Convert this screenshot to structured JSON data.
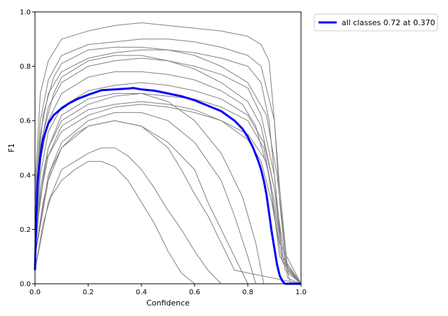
{
  "chart_data": {
    "type": "line",
    "title": "",
    "xlabel": "Confidence",
    "ylabel": "F1",
    "xlim": [
      0.0,
      1.0
    ],
    "ylim": [
      0.0,
      1.0
    ],
    "x_ticks": [
      "0.0",
      "0.2",
      "0.4",
      "0.6",
      "0.8",
      "1.0"
    ],
    "y_ticks": [
      "0.0",
      "0.2",
      "0.4",
      "0.6",
      "0.8",
      "1.0"
    ],
    "grid": false,
    "legend_position": "outside-top-right",
    "colors": {
      "class_curves": "#808080",
      "all_classes": "#0000ff"
    },
    "series": [
      {
        "name": "all classes 0.72 at 0.370",
        "legend_label": "all classes 0.72 at 0.370",
        "highlight": true,
        "x": [
          0.0,
          0.005,
          0.01,
          0.02,
          0.03,
          0.05,
          0.07,
          0.1,
          0.13,
          0.16,
          0.2,
          0.25,
          0.3,
          0.35,
          0.37,
          0.4,
          0.45,
          0.5,
          0.55,
          0.6,
          0.65,
          0.7,
          0.75,
          0.78,
          0.8,
          0.82,
          0.84,
          0.85,
          0.86,
          0.87,
          0.88,
          0.89,
          0.9,
          0.91,
          0.92,
          0.93,
          0.94,
          0.95,
          0.97,
          1.0
        ],
        "values": [
          0.05,
          0.25,
          0.38,
          0.47,
          0.53,
          0.59,
          0.62,
          0.645,
          0.665,
          0.68,
          0.695,
          0.712,
          0.715,
          0.718,
          0.72,
          0.715,
          0.71,
          0.7,
          0.69,
          0.675,
          0.655,
          0.635,
          0.6,
          0.57,
          0.54,
          0.5,
          0.45,
          0.42,
          0.38,
          0.33,
          0.26,
          0.19,
          0.13,
          0.07,
          0.03,
          0.01,
          0.0,
          0.0,
          0.0,
          0.0
        ]
      },
      {
        "x": [
          0.0,
          0.02,
          0.05,
          0.1,
          0.2,
          0.3,
          0.4,
          0.5,
          0.6,
          0.7,
          0.8,
          0.85,
          0.88,
          0.9,
          0.92,
          0.94,
          0.96,
          1.0
        ],
        "values": [
          0.35,
          0.7,
          0.82,
          0.9,
          0.93,
          0.95,
          0.96,
          0.95,
          0.94,
          0.93,
          0.91,
          0.88,
          0.82,
          0.6,
          0.3,
          0.1,
          0.0,
          0.0
        ]
      },
      {
        "x": [
          0.0,
          0.02,
          0.05,
          0.1,
          0.2,
          0.3,
          0.4,
          0.5,
          0.6,
          0.7,
          0.8,
          0.85,
          0.9,
          0.92,
          0.95,
          1.0
        ],
        "values": [
          0.3,
          0.6,
          0.75,
          0.84,
          0.88,
          0.89,
          0.9,
          0.9,
          0.89,
          0.87,
          0.84,
          0.8,
          0.6,
          0.35,
          0.05,
          0.0
        ]
      },
      {
        "x": [
          0.0,
          0.02,
          0.05,
          0.1,
          0.2,
          0.3,
          0.4,
          0.5,
          0.6,
          0.7,
          0.8,
          0.85,
          0.88,
          0.9,
          0.93,
          1.0
        ],
        "values": [
          0.25,
          0.55,
          0.7,
          0.78,
          0.83,
          0.85,
          0.86,
          0.86,
          0.85,
          0.83,
          0.8,
          0.74,
          0.6,
          0.4,
          0.1,
          0.0
        ]
      },
      {
        "x": [
          0.0,
          0.02,
          0.05,
          0.1,
          0.2,
          0.3,
          0.4,
          0.5,
          0.6,
          0.7,
          0.8,
          0.85,
          0.9,
          0.93,
          1.0
        ],
        "values": [
          0.2,
          0.5,
          0.65,
          0.74,
          0.8,
          0.82,
          0.83,
          0.82,
          0.8,
          0.77,
          0.72,
          0.62,
          0.4,
          0.1,
          0.0
        ]
      },
      {
        "x": [
          0.0,
          0.02,
          0.05,
          0.1,
          0.2,
          0.3,
          0.4,
          0.5,
          0.6,
          0.7,
          0.78,
          0.83,
          0.88,
          0.92,
          1.0
        ],
        "values": [
          0.2,
          0.45,
          0.6,
          0.7,
          0.76,
          0.78,
          0.78,
          0.77,
          0.75,
          0.71,
          0.66,
          0.58,
          0.4,
          0.1,
          0.0
        ]
      },
      {
        "x": [
          0.0,
          0.02,
          0.05,
          0.1,
          0.2,
          0.3,
          0.4,
          0.5,
          0.6,
          0.7,
          0.8,
          0.86,
          0.9,
          0.93,
          1.0
        ],
        "values": [
          0.15,
          0.4,
          0.56,
          0.65,
          0.71,
          0.73,
          0.74,
          0.73,
          0.71,
          0.68,
          0.62,
          0.52,
          0.35,
          0.1,
          0.0
        ]
      },
      {
        "x": [
          0.0,
          0.02,
          0.05,
          0.1,
          0.2,
          0.3,
          0.4,
          0.5,
          0.6,
          0.7,
          0.8,
          0.86,
          0.9,
          0.94,
          1.0
        ],
        "values": [
          0.15,
          0.35,
          0.5,
          0.6,
          0.66,
          0.69,
          0.7,
          0.69,
          0.68,
          0.65,
          0.6,
          0.5,
          0.3,
          0.05,
          0.0
        ]
      },
      {
        "x": [
          0.0,
          0.02,
          0.05,
          0.1,
          0.2,
          0.3,
          0.4,
          0.5,
          0.6,
          0.7,
          0.8,
          0.87,
          0.92,
          1.0
        ],
        "values": [
          0.1,
          0.32,
          0.47,
          0.56,
          0.62,
          0.65,
          0.66,
          0.65,
          0.63,
          0.6,
          0.55,
          0.45,
          0.15,
          0.0
        ]
      },
      {
        "x": [
          0.0,
          0.03,
          0.06,
          0.1,
          0.15,
          0.2,
          0.3,
          0.4,
          0.5,
          0.6,
          0.65,
          0.7,
          0.75,
          0.8,
          1.0
        ],
        "values": [
          0.1,
          0.3,
          0.42,
          0.5,
          0.55,
          0.58,
          0.6,
          0.58,
          0.52,
          0.42,
          0.3,
          0.2,
          0.1,
          0.0,
          0.0
        ]
      },
      {
        "x": [
          0.0,
          0.03,
          0.06,
          0.1,
          0.15,
          0.2,
          0.25,
          0.3,
          0.35,
          0.4,
          0.45,
          0.5,
          0.55,
          0.6,
          1.0
        ],
        "values": [
          0.05,
          0.22,
          0.32,
          0.38,
          0.42,
          0.45,
          0.45,
          0.43,
          0.38,
          0.3,
          0.22,
          0.12,
          0.04,
          0.0,
          0.0
        ]
      },
      {
        "x": [
          0.0,
          0.05,
          0.1,
          0.15,
          0.2,
          0.25,
          0.3,
          0.35,
          0.4,
          0.45,
          0.5,
          0.55,
          0.6,
          0.65,
          0.7,
          1.0
        ],
        "values": [
          0.05,
          0.3,
          0.42,
          0.45,
          0.48,
          0.5,
          0.5,
          0.47,
          0.42,
          0.35,
          0.27,
          0.2,
          0.12,
          0.05,
          0.0,
          0.0
        ]
      },
      {
        "x": [
          0.0,
          0.05,
          0.1,
          0.2,
          0.3,
          0.4,
          0.5,
          0.55,
          0.6,
          0.65,
          0.7,
          0.75,
          1.0
        ],
        "values": [
          0.1,
          0.38,
          0.5,
          0.58,
          0.6,
          0.58,
          0.5,
          0.42,
          0.33,
          0.25,
          0.15,
          0.05,
          0.0
        ]
      },
      {
        "x": [
          0.0,
          0.05,
          0.1,
          0.2,
          0.3,
          0.4,
          0.5,
          0.6,
          0.7,
          0.75,
          0.8,
          0.83,
          1.0
        ],
        "values": [
          0.1,
          0.4,
          0.52,
          0.6,
          0.63,
          0.63,
          0.6,
          0.52,
          0.38,
          0.25,
          0.1,
          0.0,
          0.0
        ]
      },
      {
        "x": [
          0.0,
          0.05,
          0.1,
          0.2,
          0.3,
          0.4,
          0.5,
          0.6,
          0.7,
          0.78,
          0.83,
          0.86,
          1.0
        ],
        "values": [
          0.2,
          0.5,
          0.62,
          0.68,
          0.7,
          0.7,
          0.67,
          0.6,
          0.48,
          0.32,
          0.15,
          0.0,
          0.0
        ]
      },
      {
        "x": [
          0.0,
          0.03,
          0.07,
          0.1,
          0.2,
          0.3,
          0.4,
          0.5,
          0.6,
          0.7,
          0.8,
          0.85,
          0.9,
          0.95,
          1.0
        ],
        "values": [
          0.2,
          0.55,
          0.7,
          0.76,
          0.82,
          0.84,
          0.84,
          0.82,
          0.79,
          0.74,
          0.67,
          0.58,
          0.35,
          0.02,
          0.0
        ]
      },
      {
        "x": [
          0.0,
          0.03,
          0.07,
          0.1,
          0.2,
          0.3,
          0.4,
          0.5,
          0.6,
          0.7,
          0.8,
          0.87,
          0.91,
          0.95,
          1.0
        ],
        "values": [
          0.3,
          0.62,
          0.76,
          0.81,
          0.86,
          0.87,
          0.87,
          0.86,
          0.84,
          0.8,
          0.74,
          0.62,
          0.4,
          0.05,
          0.0
        ]
      },
      {
        "x": [
          0.0,
          0.04,
          0.1,
          0.2,
          0.3,
          0.4,
          0.5,
          0.6,
          0.7,
          0.8,
          0.85,
          0.89,
          0.93,
          1.0
        ],
        "values": [
          0.15,
          0.45,
          0.58,
          0.64,
          0.66,
          0.67,
          0.66,
          0.64,
          0.6,
          0.53,
          0.45,
          0.3,
          0.08,
          0.0
        ]
      }
    ]
  }
}
